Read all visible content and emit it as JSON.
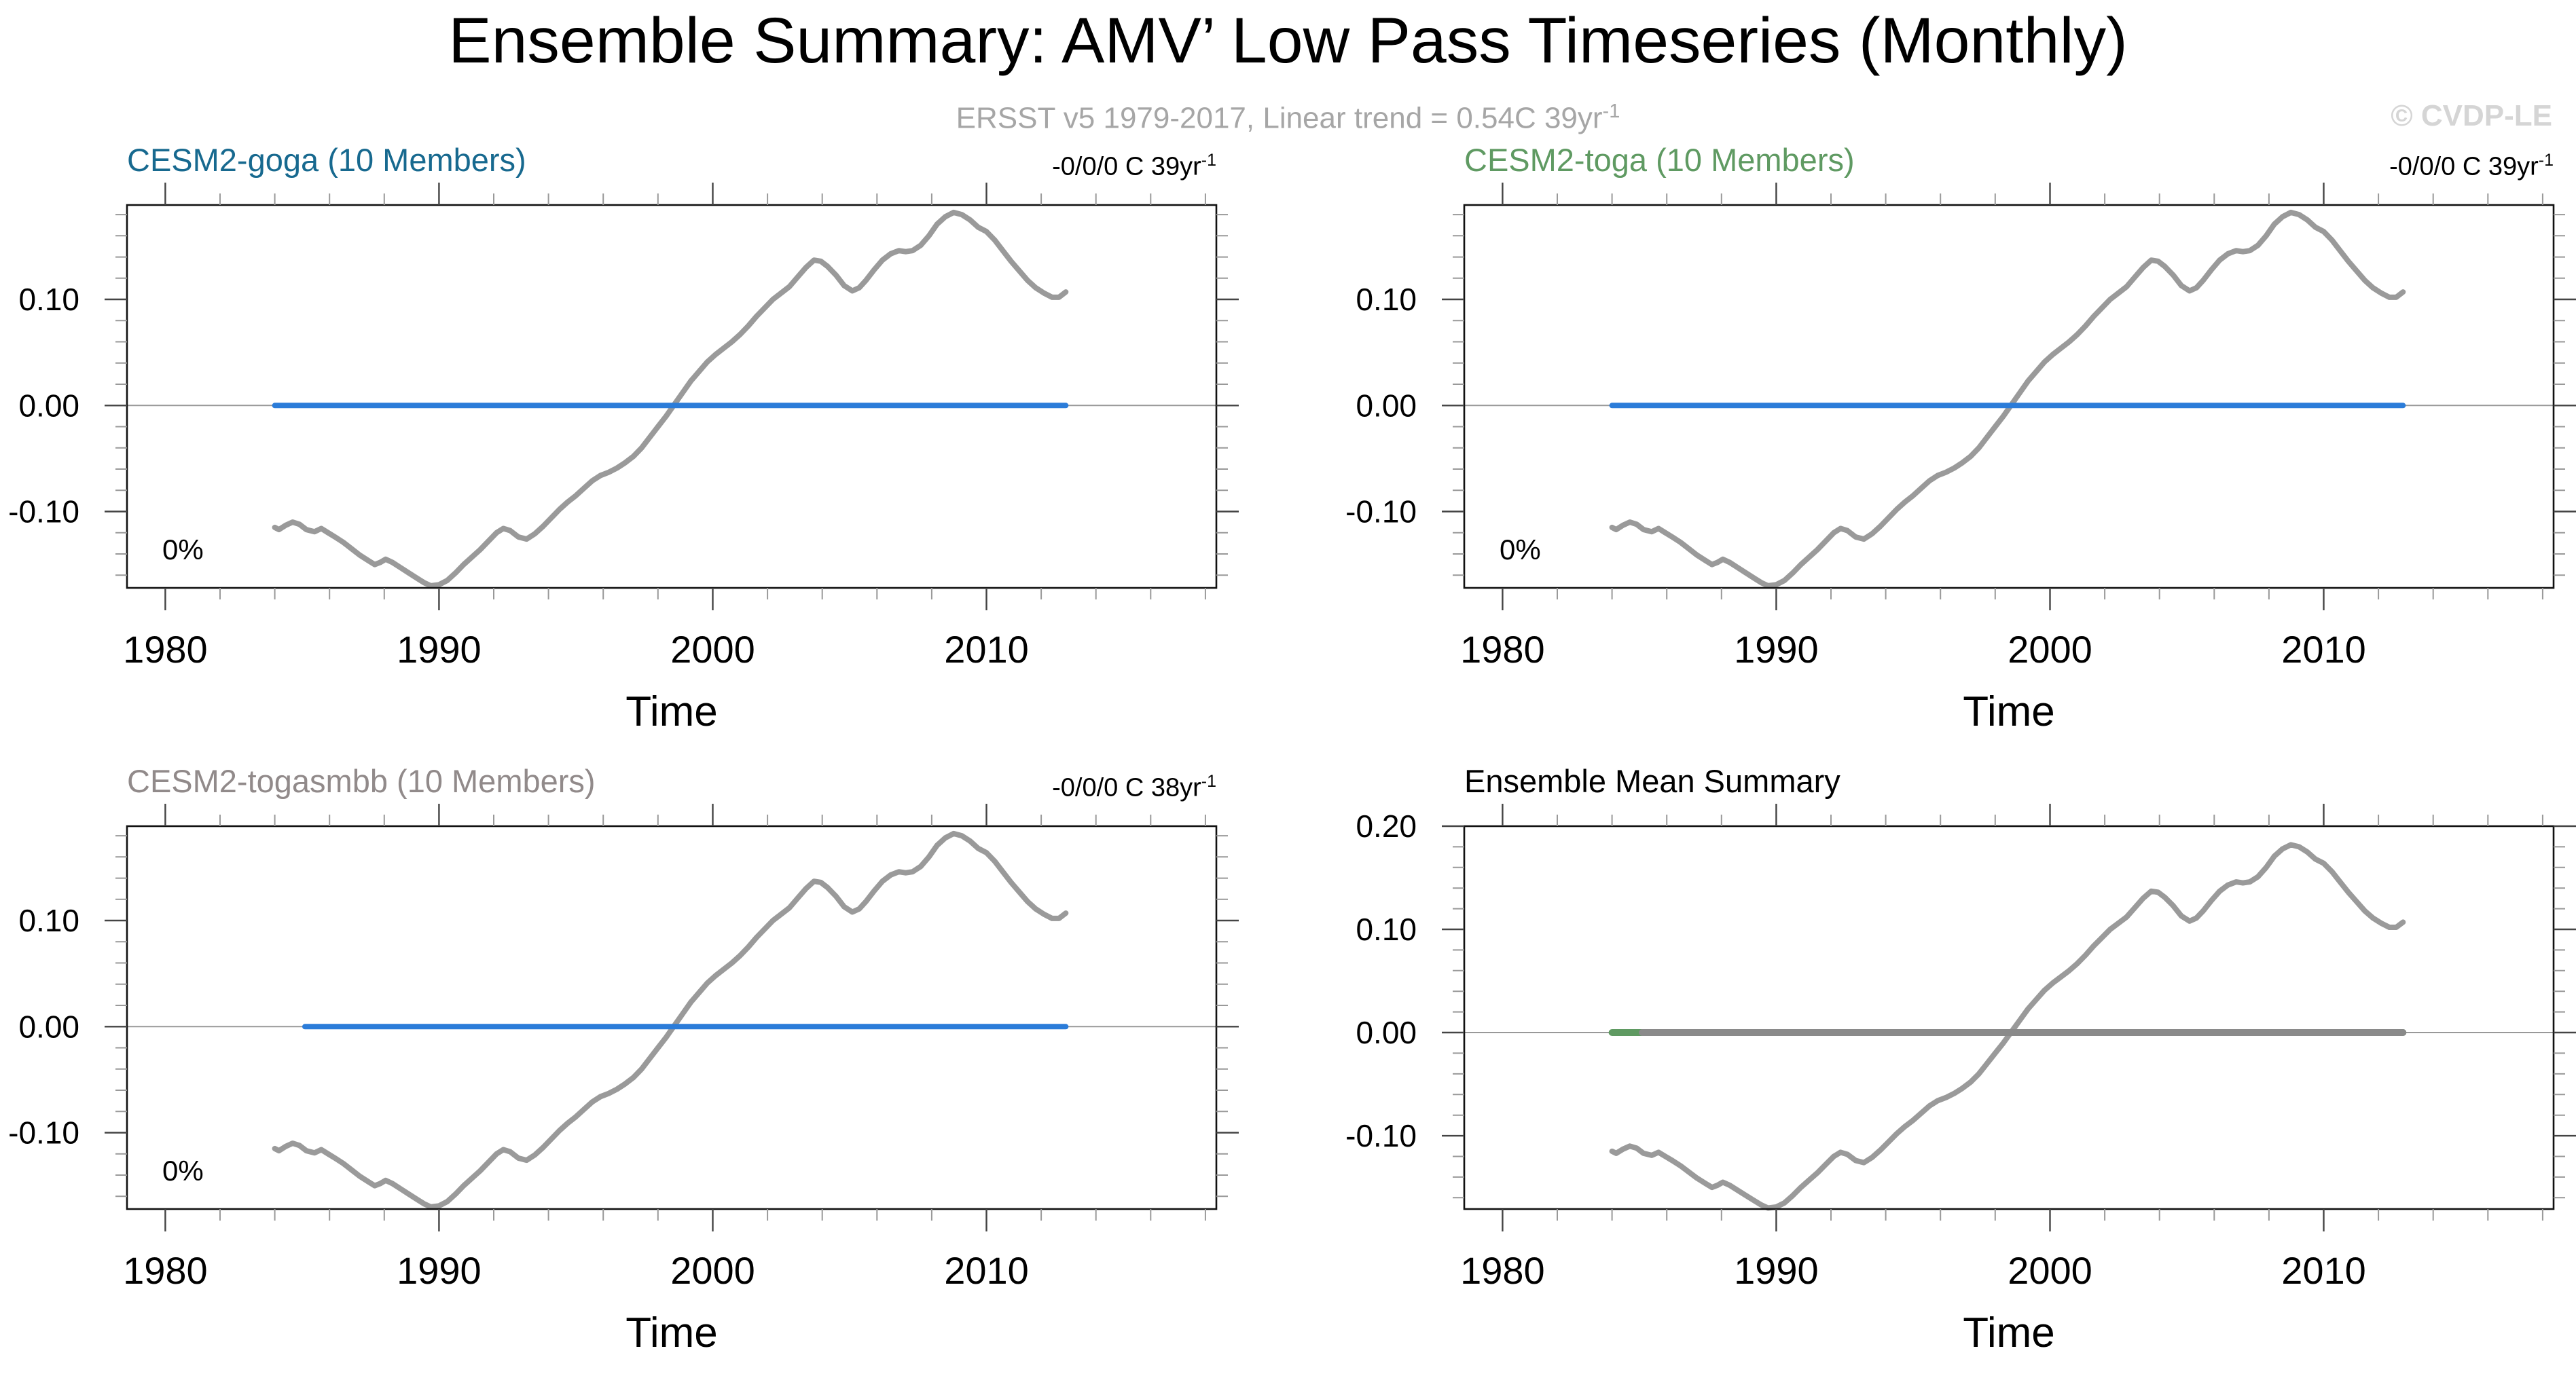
{
  "figure": {
    "title": "Ensemble Summary: AMV’ Low Pass Timeseries (Monthly)",
    "subtitle": "ERSST v5 1979-2017, Linear trend = 0.54C 39yr",
    "subtitle_sup": "-1",
    "watermark": "© CVDP-LE"
  },
  "chart_data": {
    "type": "line",
    "xlabel": "Time",
    "x_domain": [
      1978.6,
      2018.4
    ],
    "x_major_ticks": [
      1980,
      1990,
      2000,
      2010
    ],
    "x_minor_interval": 2,
    "y_minor_interval": 0.02,
    "zero_reference_line_color": "#999999",
    "axis_color": "#111111",
    "obs_series": {
      "name": "ERSST v5 AMV low-pass observations",
      "color": "#9a9a9a",
      "points": [
        [
          1984.0,
          -0.115
        ],
        [
          1984.15,
          -0.117
        ],
        [
          1984.4,
          -0.113
        ],
        [
          1984.65,
          -0.11
        ],
        [
          1984.9,
          -0.112
        ],
        [
          1985.15,
          -0.117
        ],
        [
          1985.45,
          -0.119
        ],
        [
          1985.7,
          -0.116
        ],
        [
          1985.95,
          -0.12
        ],
        [
          1986.2,
          -0.124
        ],
        [
          1986.5,
          -0.129
        ],
        [
          1986.8,
          -0.135
        ],
        [
          1987.1,
          -0.141
        ],
        [
          1987.4,
          -0.146
        ],
        [
          1987.65,
          -0.15
        ],
        [
          1987.85,
          -0.148
        ],
        [
          1988.05,
          -0.145
        ],
        [
          1988.3,
          -0.148
        ],
        [
          1988.6,
          -0.153
        ],
        [
          1988.9,
          -0.158
        ],
        [
          1989.2,
          -0.163
        ],
        [
          1989.45,
          -0.167
        ],
        [
          1989.7,
          -0.17
        ],
        [
          1990.0,
          -0.169
        ],
        [
          1990.3,
          -0.165
        ],
        [
          1990.6,
          -0.158
        ],
        [
          1990.9,
          -0.15
        ],
        [
          1991.2,
          -0.143
        ],
        [
          1991.5,
          -0.136
        ],
        [
          1991.8,
          -0.128
        ],
        [
          1992.1,
          -0.12
        ],
        [
          1992.35,
          -0.116
        ],
        [
          1992.6,
          -0.118
        ],
        [
          1992.9,
          -0.124
        ],
        [
          1993.2,
          -0.126
        ],
        [
          1993.5,
          -0.121
        ],
        [
          1993.8,
          -0.114
        ],
        [
          1994.1,
          -0.106
        ],
        [
          1994.4,
          -0.098
        ],
        [
          1994.7,
          -0.091
        ],
        [
          1995.0,
          -0.085
        ],
        [
          1995.3,
          -0.078
        ],
        [
          1995.6,
          -0.071
        ],
        [
          1995.9,
          -0.066
        ],
        [
          1996.2,
          -0.063
        ],
        [
          1996.5,
          -0.059
        ],
        [
          1996.8,
          -0.054
        ],
        [
          1997.1,
          -0.048
        ],
        [
          1997.4,
          -0.04
        ],
        [
          1997.7,
          -0.03
        ],
        [
          1998.0,
          -0.02
        ],
        [
          1998.3,
          -0.01
        ],
        [
          1998.6,
          0.001
        ],
        [
          1998.9,
          0.012
        ],
        [
          1999.2,
          0.023
        ],
        [
          1999.5,
          0.032
        ],
        [
          1999.8,
          0.041
        ],
        [
          2000.1,
          0.048
        ],
        [
          2000.4,
          0.054
        ],
        [
          2000.7,
          0.06
        ],
        [
          2001.0,
          0.067
        ],
        [
          2001.3,
          0.075
        ],
        [
          2001.6,
          0.084
        ],
        [
          2001.9,
          0.092
        ],
        [
          2002.2,
          0.1
        ],
        [
          2002.5,
          0.106
        ],
        [
          2002.8,
          0.112
        ],
        [
          2003.1,
          0.121
        ],
        [
          2003.4,
          0.13
        ],
        [
          2003.7,
          0.137
        ],
        [
          2003.95,
          0.136
        ],
        [
          2004.2,
          0.131
        ],
        [
          2004.5,
          0.123
        ],
        [
          2004.8,
          0.113
        ],
        [
          2005.1,
          0.108
        ],
        [
          2005.35,
          0.111
        ],
        [
          2005.6,
          0.118
        ],
        [
          2005.9,
          0.128
        ],
        [
          2006.2,
          0.137
        ],
        [
          2006.5,
          0.143
        ],
        [
          2006.8,
          0.146
        ],
        [
          2007.05,
          0.145
        ],
        [
          2007.3,
          0.146
        ],
        [
          2007.6,
          0.151
        ],
        [
          2007.9,
          0.16
        ],
        [
          2008.2,
          0.171
        ],
        [
          2008.5,
          0.178
        ],
        [
          2008.8,
          0.182
        ],
        [
          2009.1,
          0.18
        ],
        [
          2009.4,
          0.175
        ],
        [
          2009.7,
          0.168
        ],
        [
          2010.0,
          0.164
        ],
        [
          2010.3,
          0.156
        ],
        [
          2010.6,
          0.146
        ],
        [
          2010.9,
          0.136
        ],
        [
          2011.2,
          0.127
        ],
        [
          2011.5,
          0.118
        ],
        [
          2011.8,
          0.111
        ],
        [
          2012.1,
          0.106
        ],
        [
          2012.4,
          0.102
        ],
        [
          2012.65,
          0.102
        ],
        [
          2012.9,
          0.107
        ]
      ]
    },
    "panels": [
      {
        "id": "cesm2-goga",
        "title": "CESM2-goga (10 Members)",
        "title_color": "#17698f",
        "trend_label": "-0/0/0 C 39yr",
        "trend_sup": "-1",
        "pct_label": "0%",
        "ylim": [
          -0.172,
          0.189
        ],
        "y_major_ticks": [
          -0.1,
          0,
          0.1
        ],
        "ensemble_mean_lines": [
          {
            "color": "#2b7cd9",
            "start": 1984.0,
            "end": 2012.9,
            "width": 8
          }
        ]
      },
      {
        "id": "cesm2-toga",
        "title": "CESM2-toga (10 Members)",
        "title_color": "#5f9a62",
        "trend_label": "-0/0/0 C 39yr",
        "trend_sup": "-1",
        "pct_label": "0%",
        "ylim": [
          -0.172,
          0.189
        ],
        "y_major_ticks": [
          -0.1,
          0,
          0.1
        ],
        "ensemble_mean_lines": [
          {
            "color": "#2b7cd9",
            "start": 1984.0,
            "end": 2012.9,
            "width": 8
          }
        ]
      },
      {
        "id": "cesm2-togasmbb",
        "title": "CESM2-togasmbb (10 Members)",
        "title_color": "#918a8a",
        "trend_label": "-0/0/0 C 38yr",
        "trend_sup": "-1",
        "pct_label": "0%",
        "ylim": [
          -0.172,
          0.189
        ],
        "y_major_ticks": [
          -0.1,
          0,
          0.1
        ],
        "ensemble_mean_lines": [
          {
            "color": "#2b7cd9",
            "start": 1985.1,
            "end": 2012.9,
            "width": 8
          }
        ]
      },
      {
        "id": "ensemble-mean-summary",
        "title": "Ensemble Mean Summary",
        "title_color": "#000000",
        "ylim": [
          -0.171,
          0.2
        ],
        "y_major_ticks": [
          -0.1,
          0,
          0.1,
          0.2
        ],
        "ensemble_mean_lines": [
          {
            "color": "#2b7cd9",
            "start": 1984.0,
            "end": 2012.9,
            "width": 9
          },
          {
            "color": "#5f9a62",
            "start": 1984.0,
            "end": 2012.9,
            "width": 10
          },
          {
            "color": "#8a8a8a",
            "start": 1985.1,
            "end": 2012.9,
            "width": 10
          }
        ]
      }
    ]
  }
}
